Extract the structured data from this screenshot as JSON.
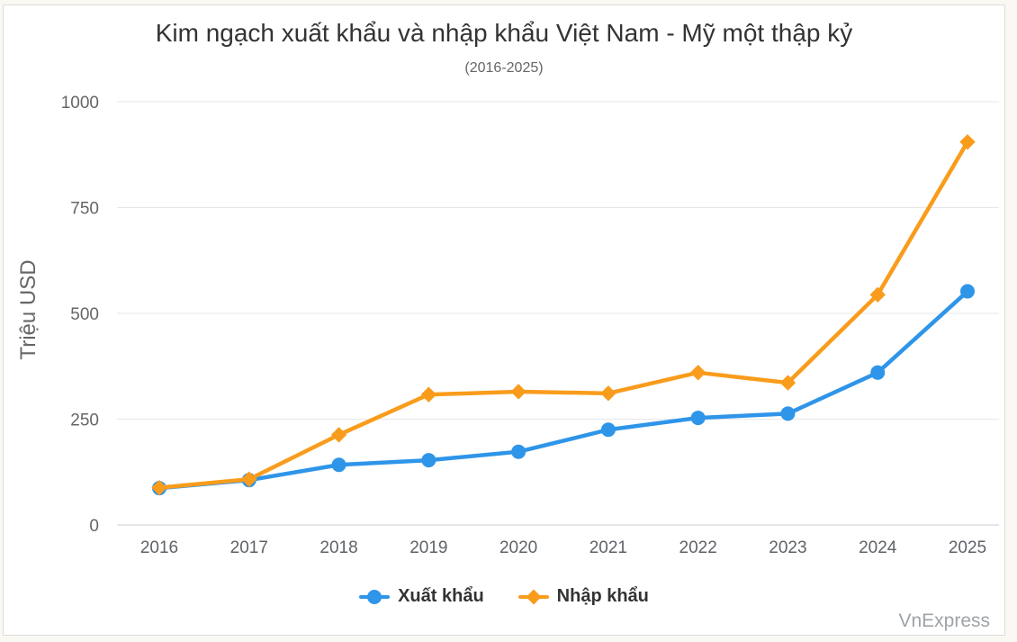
{
  "chart": {
    "title": "Kim ngạch xuất khẩu và nhập khẩu Việt Nam - Mỹ một thập kỷ",
    "subtitle": "(2016-2025)",
    "ylabel": "Triệu USD",
    "watermark": "VnExpress"
  },
  "chart_data": {
    "type": "line",
    "categories": [
      "2016",
      "2017",
      "2018",
      "2019",
      "2020",
      "2021",
      "2022",
      "2023",
      "2024",
      "2025"
    ],
    "series": [
      {
        "name": "Xuất khẩu",
        "color": "#2E95E9",
        "marker": "circle",
        "values": [
          87,
          106,
          142,
          153,
          173,
          225,
          253,
          263,
          360,
          552
        ]
      },
      {
        "name": "Nhập khẩu",
        "color": "#F99C1C",
        "marker": "diamond",
        "values": [
          88,
          108,
          213,
          308,
          315,
          311,
          360,
          336,
          544,
          905
        ]
      }
    ],
    "yticks": [
      0,
      250,
      500,
      750,
      1000
    ],
    "ylim": [
      0,
      1000
    ],
    "grid": true,
    "legend_position": "bottom"
  },
  "colors": {
    "page_bg": "#FAF8F2",
    "card_bg": "#FFFFFF",
    "card_border": "#DDDDDD",
    "gridline": "#E7E7E7",
    "axis_line": "#C9CDD2",
    "title_text": "#333333",
    "muted_text": "#666666",
    "watermark_text": "#9EA3A8"
  }
}
